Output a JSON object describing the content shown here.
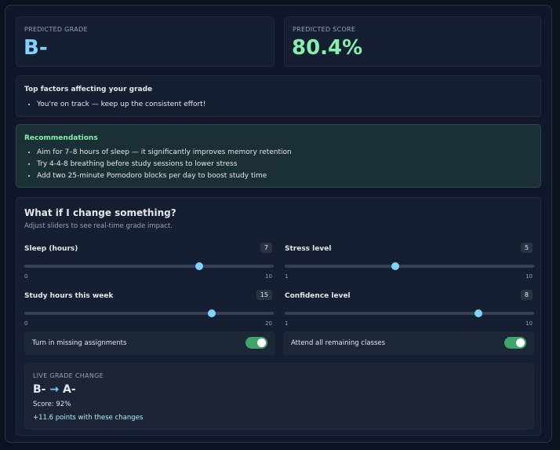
{
  "predicted_grade": {
    "label": "PREDICTED GRADE",
    "value": "B-"
  },
  "predicted_score": {
    "label": "PREDICTED SCORE",
    "value": "80.4%"
  },
  "top_factors": {
    "title": "Top factors affecting your grade",
    "items": [
      "You're on track — keep up the consistent effort!"
    ]
  },
  "recommendations": {
    "title": "Recommendations",
    "items": [
      "Aim for 7–8 hours of sleep — it significantly improves memory retention",
      "Try 4-4-8 breathing before study sessions to lower stress",
      "Add two 25-minute Pomodoro blocks per day to boost study time"
    ]
  },
  "what_if": {
    "title": "What if I change something?",
    "subtitle": "Adjust sliders to see real-time grade impact.",
    "sliders": [
      {
        "label": "Sleep (hours)",
        "value": 7,
        "min": 0,
        "max": 10
      },
      {
        "label": "Stress level",
        "value": 5,
        "min": 1,
        "max": 10
      },
      {
        "label": "Study hours this week",
        "value": 15,
        "min": 0,
        "max": 20
      },
      {
        "label": "Confidence level",
        "value": 8,
        "min": 1,
        "max": 10
      }
    ],
    "toggles": [
      {
        "label": "Turn in missing assignments",
        "on": true
      },
      {
        "label": "Attend all remaining classes",
        "on": true
      }
    ],
    "live": {
      "label": "LIVE GRADE CHANGE",
      "from": "B-",
      "arrow": "→",
      "to": "A-",
      "score": "Score: 92%",
      "delta": "+11.6 points with these changes"
    }
  }
}
